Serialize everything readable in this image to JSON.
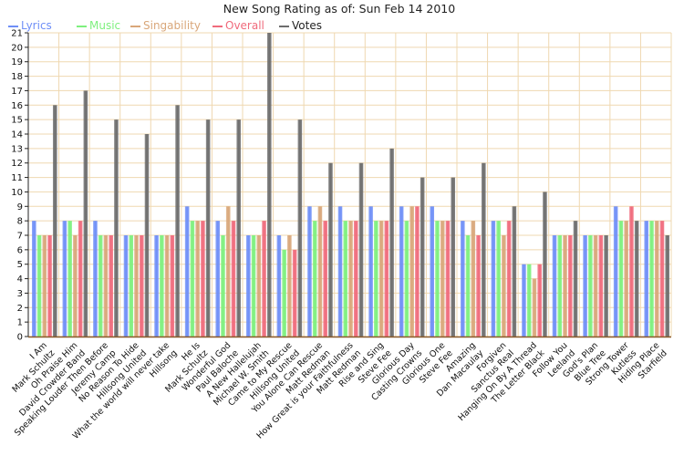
{
  "chart_data": {
    "type": "bar",
    "title": "New Song Rating as of: Sun Feb 14 2010",
    "ylim": [
      0,
      21
    ],
    "yticks": [
      0,
      1,
      2,
      3,
      4,
      5,
      6,
      7,
      8,
      9,
      10,
      11,
      12,
      13,
      14,
      15,
      16,
      17,
      18,
      19,
      20,
      21
    ],
    "grid": true,
    "legend_position": "top-left",
    "categories": [
      [
        "I Am",
        "Mark Schultz"
      ],
      [
        "Oh Praise Him",
        "David Crowder Band"
      ],
      [
        "Speaking Louder Then Before",
        "Jeremy Camp"
      ],
      [
        "No Reason To Hide",
        "Hillsong United"
      ],
      [
        "What the world will never take",
        "Hillsong"
      ],
      [
        "He Is",
        "Mark Schultz"
      ],
      [
        "Wonderful God",
        "Paul Baloche"
      ],
      [
        "A New Hallelujah",
        "Michael W. Smith"
      ],
      [
        "Came to My Rescue",
        "Hillsong United"
      ],
      [
        "You Alone Can Rescue",
        "Matt Redman"
      ],
      [
        "How Great is your Faithfulness",
        "Matt Redman"
      ],
      [
        "Rise and Sing",
        "Steve Fee"
      ],
      [
        "Glorious Day",
        "Casting Crowns"
      ],
      [
        "Glorious One",
        "Steve Fee"
      ],
      [
        "Amazing",
        "Dan Macaulay"
      ],
      [
        "Forgiven",
        "Sanctus Real"
      ],
      [
        "Hanging On By A Thread",
        "The Letter Black"
      ],
      [
        "Follow You",
        "Leeland"
      ],
      [
        "God's Plan",
        "Blue Tree"
      ],
      [
        "Strong Tower",
        "Kutless"
      ],
      [
        "Hiding Place",
        "Starfield"
      ]
    ],
    "series": [
      {
        "name": "Lyrics",
        "color": "#6f8ff7",
        "values": [
          8,
          8,
          8,
          7,
          7,
          9,
          8,
          7,
          7,
          9,
          9,
          9,
          9,
          9,
          8,
          8,
          5,
          7,
          7,
          9,
          8
        ]
      },
      {
        "name": "Music",
        "color": "#7ef07e",
        "values": [
          7,
          8,
          7,
          7,
          7,
          8,
          7,
          7,
          6,
          8,
          8,
          8,
          8,
          8,
          7,
          8,
          5,
          7,
          7,
          8,
          8
        ]
      },
      {
        "name": "Singability",
        "color": "#d9a77a",
        "values": [
          7,
          7,
          7,
          7,
          7,
          8,
          9,
          7,
          7,
          9,
          8,
          8,
          9,
          8,
          8,
          7,
          4,
          7,
          7,
          8,
          8
        ]
      },
      {
        "name": "Overall",
        "color": "#f06b7c",
        "values": [
          7,
          8,
          7,
          7,
          7,
          8,
          8,
          8,
          6,
          8,
          8,
          8,
          9,
          8,
          7,
          8,
          5,
          7,
          7,
          9,
          8
        ]
      },
      {
        "name": "Votes",
        "color": "#6d6d6d",
        "values": [
          16,
          17,
          15,
          14,
          16,
          15,
          15,
          21,
          15,
          12,
          12,
          13,
          11,
          11,
          12,
          9,
          10,
          8,
          7,
          8,
          7
        ]
      }
    ]
  }
}
